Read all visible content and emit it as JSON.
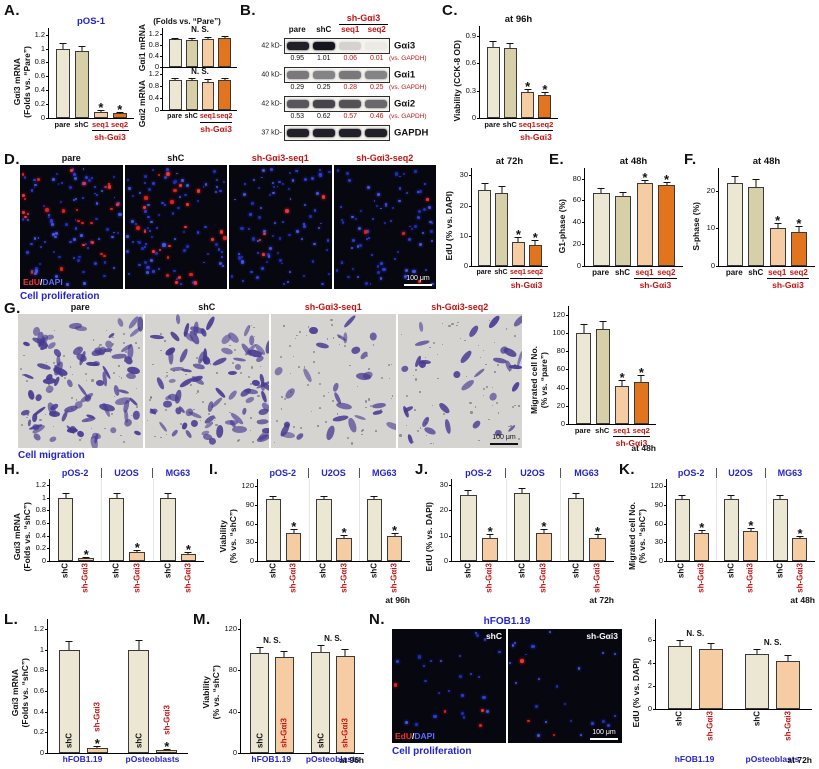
{
  "sig_star": "*",
  "colors": {
    "pare": "#ece7d2",
    "shc": "#d6cfa7",
    "seq1": "#f6cda3",
    "seq2": "#e2741d",
    "cream": "#ece7d2",
    "peach": "#f6cda3",
    "blue": "#2424cc",
    "red": "#c41414"
  },
  "panels": {
    "A": "A.",
    "B": "B.",
    "C": "C.",
    "D": "D.",
    "E": "E.",
    "F": "F.",
    "G": "G.",
    "H": "H.",
    "I": "I.",
    "J": "J.",
    "K": "K.",
    "L": "L.",
    "M": "M.",
    "N": "N."
  },
  "labels": {
    "folds_pare": "(Folds vs. “Pare”)"
  },
  "chart_data": {
    "a1": {
      "type": "bar",
      "title": {
        "t": "pOS-1",
        "c": "blue"
      },
      "ylabel": [
        "Gαi3 mRNA",
        "(Folds vs. “Pare”)"
      ],
      "yticks": [
        "0",
        "0.2",
        "0.4",
        "0.6",
        "0.8",
        "1",
        "1.2"
      ],
      "ymax": 1.2,
      "ml": 16,
      "xfs": 7.5,
      "values": [
        1.0,
        0.97,
        0.08,
        0.07
      ],
      "errs": [
        0.08,
        0.07,
        0.03,
        0.02
      ],
      "stars": [
        2,
        3
      ],
      "bar_colors": [
        "pare",
        "shc",
        "seq1",
        "seq2"
      ],
      "xlabels": [
        {
          "t": "pare"
        },
        {
          "t": "shC"
        },
        {
          "t": "seq1",
          "c": "red"
        },
        {
          "t": "seq2",
          "c": "red"
        }
      ],
      "bracket": {
        "from": 2,
        "to": 3,
        "t": "sh-Gαi3"
      }
    },
    "a2": {
      "type": "bar",
      "ylabel": [
        "Gαi1 mRNA"
      ],
      "yticks": [
        "0",
        "0.4",
        "0.8",
        "1.2"
      ],
      "ymax": 1.2,
      "head": 1.18,
      "ml": 15,
      "values": [
        1.0,
        0.97,
        1.02,
        1.05
      ],
      "errs": [
        0.07,
        0.07,
        0.08,
        0.08
      ],
      "bar_colors": [
        "pare",
        "shc",
        "seq1",
        "seq2"
      ],
      "ns": [
        {
          "from": 0,
          "to": 3,
          "t": "N. S."
        }
      ]
    },
    "a3": {
      "type": "bar",
      "ylabel": [
        "Gαi2 mRNA"
      ],
      "yticks": [
        "0",
        "0.4",
        "0.8",
        "1.2"
      ],
      "ymax": 1.2,
      "head": 1.18,
      "ml": 15,
      "xfs": 7,
      "values": [
        1.0,
        1.01,
        0.96,
        1.0
      ],
      "errs": [
        0.08,
        0.07,
        0.08,
        0.07
      ],
      "bar_colors": [
        "pare",
        "shc",
        "seq1",
        "seq2"
      ],
      "ns": [
        {
          "from": 0,
          "to": 3,
          "t": "N. S."
        }
      ],
      "xlabels": [
        {
          "t": "pare"
        },
        {
          "t": "shC"
        },
        {
          "t": "seq1",
          "c": "red"
        },
        {
          "t": "seq2",
          "c": "red"
        }
      ],
      "bracket": {
        "from": 2,
        "to": 3,
        "t": "sh-Gαi3"
      }
    },
    "c": {
      "type": "bar",
      "note": {
        "t": "at 96h",
        "pos": "top"
      },
      "ylabel": [
        "Viability (CCK-8 OD)"
      ],
      "yticks": [
        "0",
        "0.3",
        "0.6",
        "0.9"
      ],
      "ymax": 0.9,
      "head": 1.12,
      "ml": 17,
      "xfs": 7.5,
      "values": [
        0.78,
        0.77,
        0.28,
        0.25
      ],
      "errs": [
        0.06,
        0.05,
        0.04,
        0.04
      ],
      "stars": [
        2,
        3
      ],
      "bar_colors": [
        "pare",
        "shc",
        "seq1",
        "seq2"
      ],
      "xlabels": [
        {
          "t": "pare"
        },
        {
          "t": "shC"
        },
        {
          "t": "seq1",
          "c": "red"
        },
        {
          "t": "seq2",
          "c": "red"
        }
      ],
      "bracket": {
        "from": 2,
        "to": 3,
        "t": "sh-Gαi3"
      }
    },
    "d": {
      "type": "bar",
      "note": {
        "t": "at 72h",
        "pos": "top"
      },
      "ylabel": [
        "EdU (% vs. DAPI)"
      ],
      "yticks": [
        "0",
        "10",
        "20",
        "30"
      ],
      "ymax": 30,
      "ml": 17,
      "xfs": 7,
      "values": [
        25,
        24,
        8,
        7
      ],
      "errs": [
        2.5,
        2.5,
        1.5,
        1.5
      ],
      "stars": [
        2,
        3
      ],
      "bar_colors": [
        "pare",
        "shc",
        "seq1",
        "seq2"
      ],
      "xlabels": [
        {
          "t": "pare"
        },
        {
          "t": "shC"
        },
        {
          "t": "seq1",
          "c": "red"
        },
        {
          "t": "seq2",
          "c": "red"
        }
      ],
      "bracket": {
        "from": 2,
        "to": 3,
        "t": "sh-Gαi3"
      }
    },
    "e": {
      "type": "bar",
      "note": {
        "t": "at 48h",
        "pos": "top"
      },
      "ylabel": [
        "G1-phase (%)"
      ],
      "yticks": [
        "0",
        "20",
        "40",
        "60",
        "80"
      ],
      "ymax": 80,
      "head": 1.12,
      "ml": 17,
      "values": [
        67,
        64,
        76,
        74
      ],
      "errs": [
        4,
        4,
        3,
        3
      ],
      "stars": [
        2,
        3
      ],
      "bar_colors": [
        "pare",
        "shc",
        "seq1",
        "seq2"
      ],
      "xlabels": [
        {
          "t": "pare"
        },
        {
          "t": "shC"
        },
        {
          "t": "seq1",
          "c": "red"
        },
        {
          "t": "seq2",
          "c": "red"
        }
      ],
      "bracket": {
        "from": 2,
        "to": 3,
        "t": "sh-Gαi3"
      }
    },
    "f": {
      "type": "bar",
      "note": {
        "t": "at 48h",
        "pos": "top"
      },
      "ylabel": [
        "S-phase (%)"
      ],
      "yticks": [
        "0",
        "10",
        "20"
      ],
      "ymax": 20,
      "head": 1.3,
      "ml": 17,
      "values": [
        22,
        21,
        10,
        9
      ],
      "errs": [
        2,
        2,
        1.5,
        1.5
      ],
      "stars": [
        2,
        3
      ],
      "bar_colors": [
        "pare",
        "shc",
        "seq1",
        "seq2"
      ],
      "xlabels": [
        {
          "t": "pare"
        },
        {
          "t": "shC"
        },
        {
          "t": "seq1",
          "c": "red"
        },
        {
          "t": "seq2",
          "c": "red"
        }
      ],
      "bracket": {
        "from": 2,
        "to": 3,
        "t": "sh-Gαi3"
      }
    },
    "g": {
      "type": "bar",
      "ylabel": [
        "Migrated cell No.",
        "(% vs. “pare”)"
      ],
      "yticks": [
        "0",
        "20",
        "40",
        "60",
        "80",
        "100",
        "120"
      ],
      "ymax": 120,
      "ml": 19,
      "xfs": 7.5,
      "values": [
        100,
        104,
        42,
        46
      ],
      "errs": [
        10,
        9,
        6,
        8
      ],
      "stars": [
        2,
        3
      ],
      "bar_colors": [
        "pare",
        "shc",
        "seq1",
        "seq2"
      ],
      "xlabels": [
        {
          "t": "pare"
        },
        {
          "t": "shC"
        },
        {
          "t": "seq1",
          "c": "red"
        },
        {
          "t": "seq2",
          "c": "red"
        }
      ],
      "bracket": {
        "from": 2,
        "to": 3,
        "t": "sh-Gαi3"
      },
      "note": {
        "t": "at 48h",
        "pos": "br"
      }
    },
    "h": {
      "type": "bar",
      "top_groups": [
        "pOS-2",
        "U2OS",
        "MG63"
      ],
      "group_size": 2,
      "ylabel": [
        "Gαi3 mRNA",
        "(Folds vs. “shC”)"
      ],
      "yticks": [
        "0",
        "0.2",
        "0.4",
        "0.6",
        "0.8",
        "1",
        "1.2"
      ],
      "ymax": 1.2,
      "ml": 17,
      "values": [
        1.0,
        0.05,
        1.0,
        0.14,
        1.0,
        0.11
      ],
      "errs": [
        0.07,
        0.02,
        0.08,
        0.03,
        0.07,
        0.03
      ],
      "stars": [
        1,
        3,
        5
      ],
      "bar_colors": [
        "cream",
        "peach"
      ],
      "xlabels_v": [
        {
          "t": "shC"
        },
        {
          "t": "sh-Gαi3",
          "c": "red"
        },
        {
          "t": "shC"
        },
        {
          "t": "sh-Gαi3",
          "c": "red"
        },
        {
          "t": "shC"
        },
        {
          "t": "sh-Gαi3",
          "c": "red"
        }
      ]
    },
    "i": {
      "type": "bar",
      "top_groups": [
        "pOS-2",
        "U2OS",
        "MG63"
      ],
      "group_size": 2,
      "ylabel": [
        "Viability",
        "(% vs. “shC”)"
      ],
      "yticks": [
        "0",
        "30",
        "60",
        "90",
        "120"
      ],
      "ymax": 120,
      "head": 1.1,
      "ml": 19,
      "values": [
        100,
        45,
        100,
        37,
        100,
        41
      ],
      "errs": [
        5,
        6,
        5,
        5,
        5,
        4
      ],
      "stars": [
        1,
        3,
        5
      ],
      "bar_colors": [
        "cream",
        "peach"
      ],
      "xlabels_v": [
        {
          "t": "shC"
        },
        {
          "t": "sh-Gαi3",
          "c": "red"
        },
        {
          "t": "shC"
        },
        {
          "t": "sh-Gαi3",
          "c": "red"
        },
        {
          "t": "shC"
        },
        {
          "t": "sh-Gαi3",
          "c": "red"
        }
      ],
      "note": {
        "t": "at 96h",
        "pos": "br"
      }
    },
    "j": {
      "type": "bar",
      "top_groups": [
        "pOS-2",
        "U2OS",
        "MG63"
      ],
      "group_size": 2,
      "ylabel": [
        "EdU (% vs. DAPI)"
      ],
      "yticks": [
        "0",
        "10",
        "20",
        "30"
      ],
      "ymax": 30,
      "ml": 17,
      "values": [
        26,
        9,
        27,
        11,
        25,
        9
      ],
      "errs": [
        2,
        1.5,
        2,
        1.5,
        2,
        1.5
      ],
      "stars": [
        1,
        3,
        5
      ],
      "bar_colors": [
        "cream",
        "peach"
      ],
      "xlabels_v": [
        {
          "t": "shC"
        },
        {
          "t": "sh-Gαi3",
          "c": "red"
        },
        {
          "t": "shC"
        },
        {
          "t": "sh-Gαi3",
          "c": "red"
        },
        {
          "t": "shC"
        },
        {
          "t": "sh-Gαi3",
          "c": "red"
        }
      ],
      "note": {
        "t": "at 72h",
        "pos": "br"
      }
    },
    "k": {
      "type": "bar",
      "top_groups": [
        "pOS-2",
        "U2OS",
        "MG63"
      ],
      "group_size": 2,
      "ylabel": [
        "Migrated cell No.",
        "(% vs. “shC”)"
      ],
      "yticks": [
        "0",
        "30",
        "60",
        "90",
        "120"
      ],
      "ymax": 120,
      "head": 1.1,
      "ml": 19,
      "values": [
        100,
        45,
        100,
        48,
        100,
        37
      ],
      "errs": [
        6,
        5,
        6,
        5,
        6,
        4
      ],
      "stars": [
        1,
        3,
        5
      ],
      "bar_colors": [
        "cream",
        "peach"
      ],
      "xlabels_v": [
        {
          "t": "shC"
        },
        {
          "t": "sh-Gαi3",
          "c": "red"
        },
        {
          "t": "shC"
        },
        {
          "t": "sh-Gαi3",
          "c": "red"
        },
        {
          "t": "shC"
        },
        {
          "t": "sh-Gαi3",
          "c": "red"
        }
      ],
      "note": {
        "t": "at 48h",
        "pos": "br"
      }
    },
    "l": {
      "type": "bar",
      "group_size": 2,
      "ylabel": [
        "Gαi3 mRNA",
        "(Folds vs. “shC”)"
      ],
      "yticks": [
        "0",
        "0.2",
        "0.4",
        "0.6",
        "0.8",
        "1",
        "1.2"
      ],
      "ymax": 1.2,
      "ml": 17,
      "values": [
        1.0,
        0.05,
        1.0,
        0.03
      ],
      "errs": [
        0.08,
        0.02,
        0.09,
        0.01
      ],
      "stars": [
        1,
        3
      ],
      "bar_colors": [
        "cream",
        "peach"
      ],
      "inlabels": [
        {
          "t": "shC"
        },
        {
          "t": "sh-Gαi3",
          "c": "red"
        },
        {
          "t": "shC"
        },
        {
          "t": "sh-Gαi3",
          "c": "red"
        }
      ],
      "bottom_groups": [
        "hFOB1.19",
        "pOsteoblasts"
      ]
    },
    "m": {
      "type": "bar",
      "group_size": 2,
      "ylabel": [
        "Viability",
        "(% vs. “shC”)"
      ],
      "yticks": [
        "0",
        "40",
        "80",
        "120"
      ],
      "ymax": 120,
      "ml": 19,
      "values": [
        97,
        93,
        98,
        94
      ],
      "errs": [
        6,
        6,
        6,
        7
      ],
      "bar_colors": [
        "cream",
        "peach"
      ],
      "inlabels": [
        {
          "t": "shC"
        },
        {
          "t": "sh-Gαi3",
          "c": "red"
        },
        {
          "t": "shC"
        },
        {
          "t": "sh-Gαi3",
          "c": "red"
        }
      ],
      "ns": [
        {
          "from": 0,
          "to": 1,
          "t": "N. S."
        },
        {
          "from": 2,
          "to": 3,
          "t": "N. S."
        }
      ],
      "bottom_groups": [
        "hFOB1.19",
        "pOsteoblasts"
      ],
      "note": {
        "t": "at 96h",
        "pos": "br"
      }
    },
    "n": {
      "type": "bar",
      "group_size": 2,
      "ylabel": [
        "EdU (% vs. DAPI)"
      ],
      "yticks": [
        "0",
        "2",
        "4",
        "6"
      ],
      "ymax": 6,
      "head": 1.3,
      "ml": 14,
      "values": [
        5.5,
        5.2,
        4.8,
        4.2
      ],
      "errs": [
        0.5,
        0.5,
        0.4,
        0.5
      ],
      "bar_colors": [
        "cream",
        "peach"
      ],
      "xlabels_v": [
        {
          "t": "shC"
        },
        {
          "t": "sh-Gαi3",
          "c": "red"
        },
        {
          "t": "shC"
        },
        {
          "t": "sh-Gαi3",
          "c": "red"
        }
      ],
      "ns": [
        {
          "from": 0,
          "to": 1,
          "t": "N. S."
        },
        {
          "from": 2,
          "to": 3,
          "t": "N. S."
        }
      ],
      "bottom_groups": [
        "hFOB1.19",
        "pOsteoblasts"
      ],
      "note": {
        "t": "at 72h",
        "pos": "br"
      }
    }
  },
  "blot": {
    "header": "sh-Gαi3",
    "lanes": [
      "pare",
      "shC",
      "seq1",
      "seq2"
    ],
    "rows": [
      {
        "kd": "42 kD-",
        "protein": "Gαi3",
        "bands": [
          0.95,
          1,
          0.14,
          0.04
        ],
        "values": [
          "0.95",
          "1.01",
          "0.06",
          "0.01"
        ],
        "note": "(vs. GAPDH)"
      },
      {
        "kd": "40 kD-",
        "protein": "Gαi1",
        "bands": [
          0.55,
          0.5,
          0.55,
          0.5
        ],
        "values": [
          "0.29",
          "0.25",
          "0.28",
          "0.25"
        ],
        "note": "(vs. GAPDH)"
      },
      {
        "kd": "42 kD-",
        "protein": "Gαi2",
        "bands": [
          0.7,
          0.78,
          0.72,
          0.62
        ],
        "values": [
          "0.53",
          "0.62",
          "0.57",
          "0.46"
        ],
        "note": "(vs. GAPDH)"
      },
      {
        "kd": "37 kD-",
        "protein": "GAPDH",
        "bands": [
          0.95,
          0.95,
          0.95,
          0.95
        ]
      }
    ]
  },
  "micrographs": {
    "d": {
      "caption": "Cell proliferation",
      "legend": {
        "edu": "EdU",
        "slash": "/",
        "dapi": "DAPI"
      },
      "scale": "100 μm",
      "panels": [
        {
          "type": "fluor",
          "label": "pare",
          "blue": 82,
          "red": 26,
          "seed": 11
        },
        {
          "type": "fluor",
          "label": "shC",
          "blue": 80,
          "red": 24,
          "seed": 23
        },
        {
          "type": "fluor",
          "label": "sh-Gαi3-seq1",
          "blue": 78,
          "red": 5,
          "seed": 37
        },
        {
          "type": "fluor",
          "label": "sh-Gαi3-seq2",
          "blue": 76,
          "red": 4,
          "seed": 49
        }
      ]
    },
    "g": {
      "caption": "Cell migration",
      "scale": "100 μm",
      "panels": [
        {
          "type": "mig",
          "label": "pare",
          "cells": 88,
          "seed": 61
        },
        {
          "type": "mig",
          "label": "shC",
          "cells": 84,
          "seed": 73
        },
        {
          "type": "mig",
          "label": "sh-Gαi3-seq1",
          "cells": 27,
          "seed": 85
        },
        {
          "type": "mig",
          "label": "sh-Gαi3-seq2",
          "cells": 31,
          "seed": 97
        }
      ]
    },
    "n": {
      "title": "hFOB1.19",
      "caption": "Cell proliferation",
      "legend": {
        "edu": "EdU",
        "slash": "/",
        "dapi": "DAPI"
      },
      "scale": "100 μm",
      "panels": [
        {
          "type": "fluor",
          "corner": "shC",
          "blue": 24,
          "red": 4,
          "seed": 109
        },
        {
          "type": "fluor",
          "corner": "sh-Gαi3",
          "blue": 22,
          "red": 3,
          "seed": 121
        }
      ]
    }
  }
}
